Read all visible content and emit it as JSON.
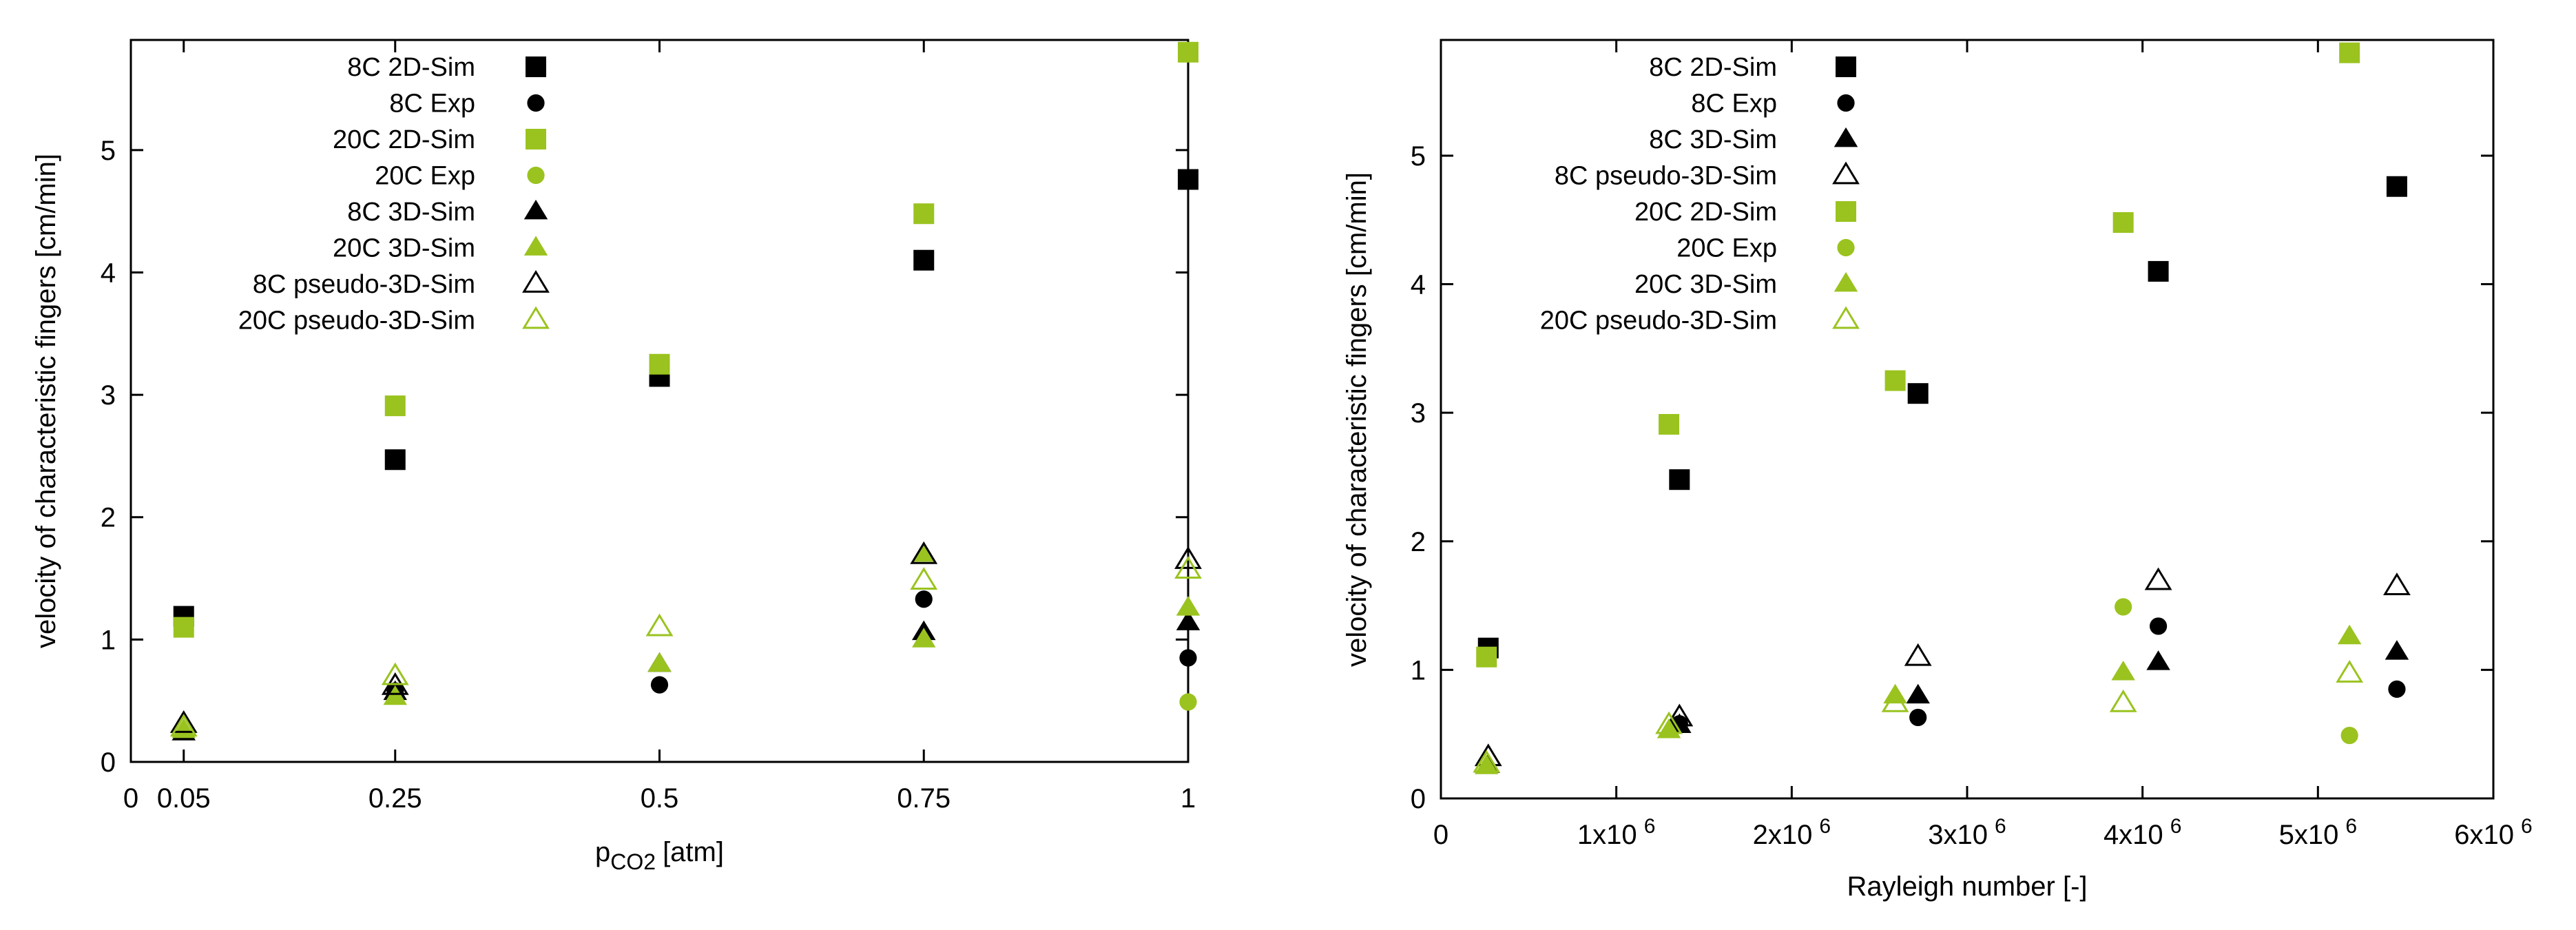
{
  "colors": {
    "black": "#000000",
    "green": "#9ac31f",
    "green_light": "#a6d13a"
  },
  "chart_data": [
    {
      "type": "scatter",
      "xlabel": "p",
      "xlabel_sub": "CO2",
      "xlabel_unit": "[atm]",
      "ylabel": "velocity of characteristic fingers [cm/min]",
      "xlim": [
        0,
        1
      ],
      "ylim": [
        0,
        5.9
      ],
      "xticks": [
        {
          "v": 0,
          "label": "0"
        },
        {
          "v": 0.05,
          "label": "0.05"
        },
        {
          "v": 0.25,
          "label": "0.25"
        },
        {
          "v": 0.5,
          "label": "0.5"
        },
        {
          "v": 0.75,
          "label": "0.75"
        },
        {
          "v": 1,
          "label": "1"
        }
      ],
      "yticks": [
        {
          "v": 0,
          "label": "0"
        },
        {
          "v": 1,
          "label": "1"
        },
        {
          "v": 2,
          "label": "2"
        },
        {
          "v": 3,
          "label": "3"
        },
        {
          "v": 4,
          "label": "4"
        },
        {
          "v": 5,
          "label": "5"
        }
      ],
      "legend_position": "top-left",
      "series": [
        {
          "name": "8C 2D-Sim",
          "marker": "square",
          "color": "#000000",
          "filled": true,
          "points": [
            [
              0.05,
              1.19
            ],
            [
              0.25,
              2.47
            ],
            [
              0.5,
              3.15
            ],
            [
              0.75,
              4.1
            ],
            [
              1.0,
              4.76
            ]
          ]
        },
        {
          "name": "8C Exp",
          "marker": "circle",
          "color": "#000000",
          "filled": true,
          "points": [
            [
              0.25,
              0.58
            ],
            [
              0.5,
              0.63
            ],
            [
              0.75,
              1.33
            ],
            [
              1.0,
              0.85
            ]
          ]
        },
        {
          "name": "20C 2D-Sim",
          "marker": "square",
          "color": "#9ac31f",
          "filled": true,
          "points": [
            [
              0.05,
              1.1
            ],
            [
              0.25,
              2.91
            ],
            [
              0.5,
              3.25
            ],
            [
              0.75,
              4.48
            ],
            [
              1.0,
              5.8
            ]
          ]
        },
        {
          "name": "20C Exp",
          "marker": "circle",
          "color": "#9ac31f",
          "filled": true,
          "points": [
            [
              1.0,
              0.49
            ]
          ]
        },
        {
          "name": "8C 3D-Sim",
          "marker": "triangle",
          "color": "#000000",
          "filled": true,
          "points": [
            [
              0.05,
              0.24
            ],
            [
              0.25,
              0.57
            ],
            [
              0.5,
              0.8
            ],
            [
              0.75,
              1.06
            ],
            [
              1.0,
              1.14
            ]
          ]
        },
        {
          "name": "20C 3D-Sim",
          "marker": "triangle",
          "color": "#9ac31f",
          "filled": true,
          "points": [
            [
              0.05,
              0.26
            ],
            [
              0.25,
              0.53
            ],
            [
              0.5,
              0.8
            ],
            [
              0.75,
              1.0
            ],
            [
              0.75,
              1.7
            ],
            [
              1.0,
              1.26
            ]
          ]
        },
        {
          "name": "8C pseudo-3D-Sim",
          "marker": "triangle",
          "color": "#000000",
          "filled": false,
          "points": [
            [
              0.05,
              0.31
            ],
            [
              0.25,
              0.62
            ],
            [
              0.75,
              1.69
            ],
            [
              1.0,
              1.65
            ]
          ]
        },
        {
          "name": "20C pseudo-3D-Sim",
          "marker": "triangle",
          "color": "#9ac31f",
          "filled": false,
          "points": [
            [
              0.05,
              0.28
            ],
            [
              0.25,
              0.7
            ],
            [
              0.5,
              1.1
            ],
            [
              0.75,
              1.48
            ],
            [
              1.0,
              1.57
            ]
          ]
        }
      ]
    },
    {
      "type": "scatter",
      "xlabel": "Rayleigh number [-]",
      "ylabel": "velocity of characteristic fingers [cm/min]",
      "xlim": [
        0,
        6000000
      ],
      "ylim": [
        0,
        5.9
      ],
      "xticks": [
        {
          "v": 0,
          "base": "0",
          "exp": ""
        },
        {
          "v": 1000000,
          "base": "1x10",
          "exp": "6"
        },
        {
          "v": 2000000,
          "base": "2x10",
          "exp": "6"
        },
        {
          "v": 3000000,
          "base": "3x10",
          "exp": "6"
        },
        {
          "v": 4000000,
          "base": "4x10",
          "exp": "6"
        },
        {
          "v": 5000000,
          "base": "5x10",
          "exp": "6"
        },
        {
          "v": 6000000,
          "base": "6x10",
          "exp": "6"
        }
      ],
      "yticks": [
        {
          "v": 0,
          "label": "0"
        },
        {
          "v": 1,
          "label": "1"
        },
        {
          "v": 2,
          "label": "2"
        },
        {
          "v": 3,
          "label": "3"
        },
        {
          "v": 4,
          "label": "4"
        },
        {
          "v": 5,
          "label": "5"
        }
      ],
      "legend_position": "top-left",
      "series": [
        {
          "name": "8C 2D-Sim",
          "marker": "square",
          "color": "#000000",
          "filled": true,
          "points": [
            [
              270000,
              1.17
            ],
            [
              1360000,
              2.48
            ],
            [
              2720000,
              3.15
            ],
            [
              4090000,
              4.1
            ],
            [
              5450000,
              4.76
            ]
          ]
        },
        {
          "name": "8C Exp",
          "marker": "circle",
          "color": "#000000",
          "filled": true,
          "points": [
            [
              1360000,
              0.58
            ],
            [
              2720000,
              0.63
            ],
            [
              4090000,
              1.34
            ],
            [
              5450000,
              0.85
            ]
          ]
        },
        {
          "name": "8C 3D-Sim",
          "marker": "triangle",
          "color": "#000000",
          "filled": true,
          "points": [
            [
              270000,
              0.26
            ],
            [
              1360000,
              0.57
            ],
            [
              2720000,
              0.8
            ],
            [
              4090000,
              1.06
            ],
            [
              5450000,
              1.14
            ]
          ]
        },
        {
          "name": "8C pseudo-3D-Sim",
          "marker": "triangle",
          "color": "#000000",
          "filled": false,
          "points": [
            [
              270000,
              0.32
            ],
            [
              1360000,
              0.63
            ],
            [
              2720000,
              1.1
            ],
            [
              4090000,
              1.69
            ],
            [
              5450000,
              1.65
            ]
          ]
        },
        {
          "name": "20C 2D-Sim",
          "marker": "square",
          "color": "#9ac31f",
          "filled": true,
          "points": [
            [
              260000,
              1.1
            ],
            [
              1300000,
              2.91
            ],
            [
              2590000,
              3.25
            ],
            [
              3890000,
              4.48
            ],
            [
              5180000,
              5.8
            ]
          ]
        },
        {
          "name": "20C Exp",
          "marker": "circle",
          "color": "#9ac31f",
          "filled": true,
          "points": [
            [
              3890000,
              1.49
            ],
            [
              5180000,
              0.49
            ]
          ]
        },
        {
          "name": "20C 3D-Sim",
          "marker": "triangle",
          "color": "#9ac31f",
          "filled": true,
          "points": [
            [
              260000,
              0.25
            ],
            [
              1300000,
              0.53
            ],
            [
              2590000,
              0.8
            ],
            [
              3890000,
              0.98
            ],
            [
              5180000,
              1.26
            ]
          ]
        },
        {
          "name": "20C pseudo-3D-Sim",
          "marker": "triangle",
          "color": "#9ac31f",
          "filled": false,
          "points": [
            [
              260000,
              0.27
            ],
            [
              1300000,
              0.57
            ],
            [
              2590000,
              0.74
            ],
            [
              3890000,
              0.74
            ],
            [
              5180000,
              0.97
            ]
          ]
        }
      ]
    }
  ]
}
